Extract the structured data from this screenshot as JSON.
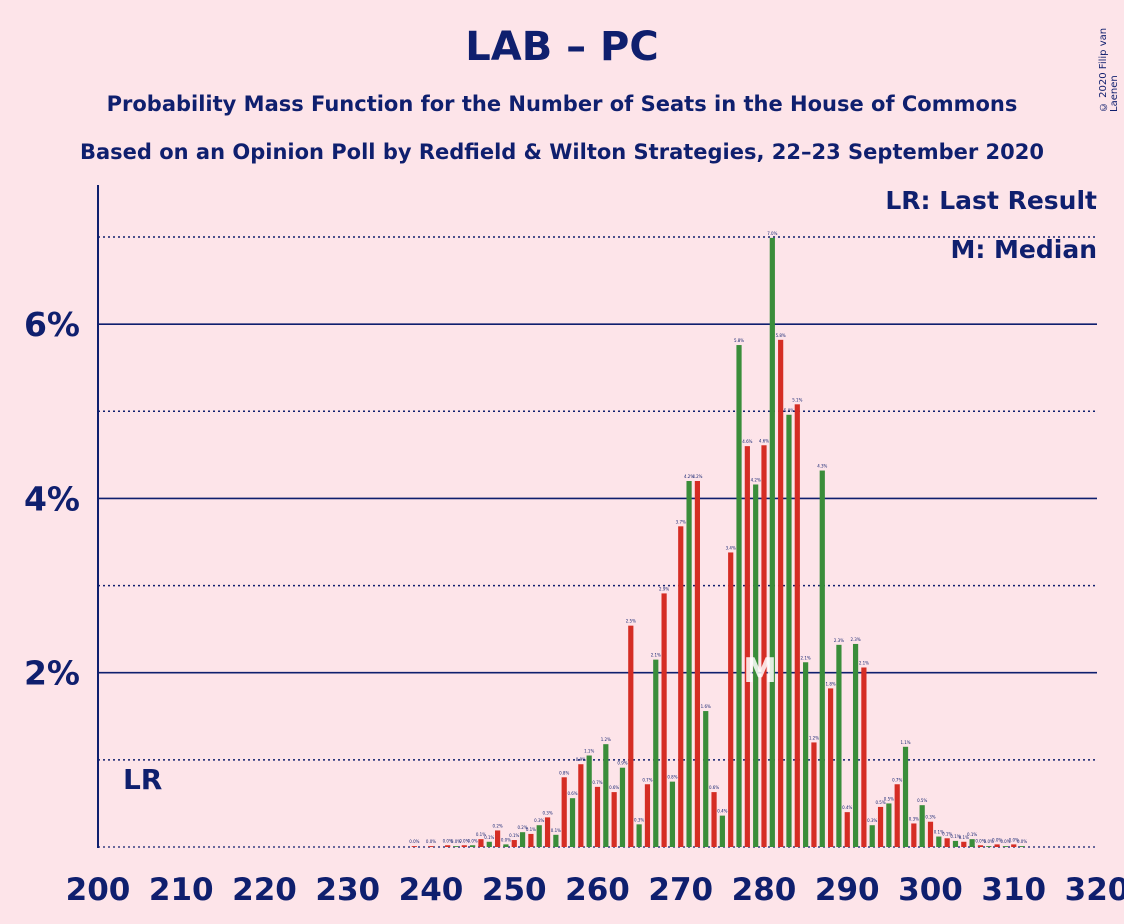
{
  "header": {
    "title": "LAB – PC",
    "subtitle1": "Probability Mass Function for the Number of Seats in the House of Commons",
    "subtitle2": "Based on an Opinion Poll by Redfield & Wilton Strategies, 22–23 September 2020",
    "copyright": "© 2020 Filip van Laenen"
  },
  "legend": {
    "lr": "LR: Last Result",
    "m": "M: Median"
  },
  "markers": {
    "last_result_label": "LR",
    "last_result_seat": 203,
    "median_label": "M",
    "median_seat": 280
  },
  "colors": {
    "background": "#fde4e9",
    "text": "#0f1f6e",
    "bar_green": "#3a8d3a",
    "bar_red": "#d52d24"
  },
  "chart_data": {
    "type": "bar",
    "xlim": [
      200,
      320
    ],
    "ylim": [
      0,
      7.6
    ],
    "x_ticks": [
      "200",
      "210",
      "220",
      "230",
      "240",
      "250",
      "260",
      "270",
      "280",
      "290",
      "300",
      "310",
      "320"
    ],
    "y_ticks": [
      "2%",
      "4%",
      "6%"
    ],
    "y_tick_values": [
      2,
      4,
      6
    ],
    "dotted_gridlines": [
      1,
      3,
      5,
      7
    ],
    "x": [
      238,
      240,
      242,
      243,
      244,
      245,
      246,
      247,
      248,
      249,
      250,
      251,
      252,
      253,
      254,
      255,
      256,
      257,
      258,
      259,
      260,
      261,
      262,
      263,
      264,
      265,
      266,
      267,
      268,
      269,
      270,
      271,
      272,
      273,
      274,
      275,
      276,
      277,
      278,
      279,
      280,
      281,
      282,
      283,
      284,
      285,
      286,
      287,
      288,
      289,
      290,
      291,
      292,
      293,
      294,
      295,
      296,
      297,
      298,
      299,
      300,
      301,
      302,
      303,
      304,
      305,
      306,
      307,
      308,
      309,
      310,
      311
    ],
    "values": [
      0.01,
      0.01,
      0.02,
      0.01,
      0.02,
      0.02,
      0.09,
      0.06,
      0.19,
      0.03,
      0.08,
      0.17,
      0.15,
      0.25,
      0.34,
      0.14,
      0.8,
      0.56,
      0.95,
      1.05,
      0.69,
      1.18,
      0.63,
      0.91,
      2.54,
      0.26,
      0.72,
      2.15,
      2.91,
      0.75,
      3.68,
      4.2,
      4.2,
      1.56,
      0.63,
      0.36,
      3.38,
      5.76,
      4.6,
      4.16,
      4.61,
      6.99,
      5.82,
      4.96,
      5.08,
      2.12,
      1.2,
      4.32,
      1.82,
      2.32,
      0.4,
      2.33,
      2.06,
      0.25,
      0.46,
      0.5,
      0.72,
      1.15,
      0.27,
      0.48,
      0.29,
      0.12,
      0.1,
      0.07,
      0.06,
      0.09,
      0.02,
      0.01,
      0.03,
      0.01,
      0.03,
      0.01
    ]
  }
}
